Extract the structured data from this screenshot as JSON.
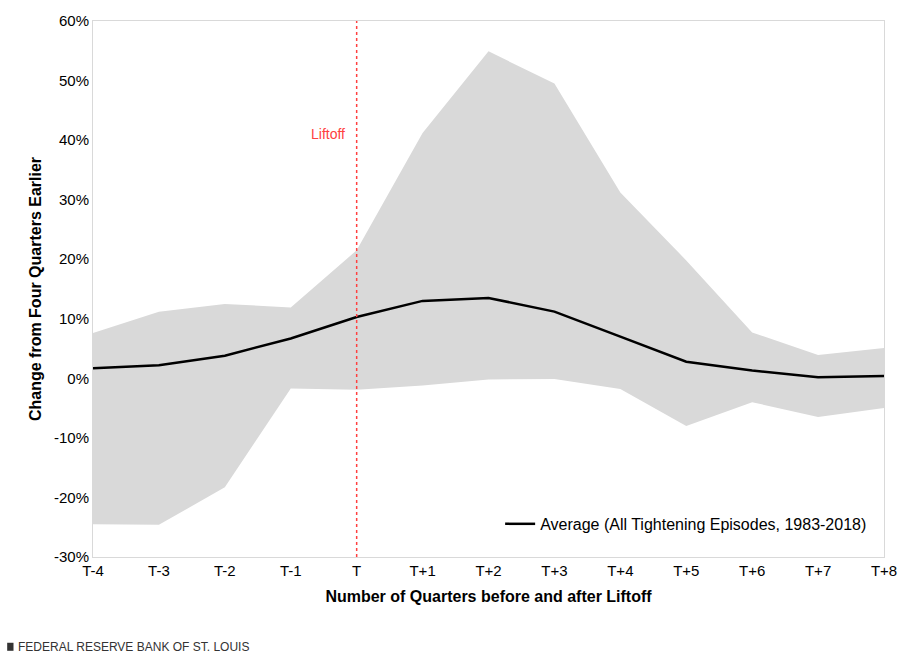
{
  "chart_data": {
    "type": "line",
    "x_label": "Number of Quarters before and after Liftoff",
    "y_label": "Change from Four Quarters Earlier",
    "categories": [
      "T-4",
      "T-3",
      "T-2",
      "T-1",
      "T",
      "T+1",
      "T+2",
      "T+3",
      "T+4",
      "T+5",
      "T+6",
      "T+7",
      "T+8"
    ],
    "series": [
      {
        "name": "Average (All Tightening Episodes, 1983-2018)",
        "color": "#000000",
        "values": [
          1.7,
          2.2,
          3.8,
          6.7,
          10.3,
          13.0,
          13.5,
          11.2,
          7.0,
          2.8,
          1.3,
          0.2,
          0.4
        ]
      }
    ],
    "band": {
      "color": "#d9d9d9",
      "upper": [
        7.6,
        11.2,
        12.5,
        11.9,
        21.5,
        41.2,
        54.9,
        49.5,
        31.2,
        19.8,
        7.7,
        3.9,
        5.1
      ],
      "lower": [
        -24.5,
        -24.6,
        -18.3,
        -1.7,
        -1.9,
        -1.2,
        -0.2,
        -0.1,
        -1.8,
        -8.0,
        -4.0,
        -6.5,
        -5.0
      ]
    },
    "vline": {
      "x": "T",
      "label": "Liftoff",
      "color": "#ff4040",
      "line_style": "dot"
    },
    "ylim": [
      -30,
      60
    ],
    "yticks": [
      {
        "value": -30,
        "label": "-30%"
      },
      {
        "value": -20,
        "label": "-20%"
      },
      {
        "value": -10,
        "label": "-10%"
      },
      {
        "value": 0,
        "label": "0%"
      },
      {
        "value": 10,
        "label": "10%"
      },
      {
        "value": 20,
        "label": "20%"
      },
      {
        "value": 30,
        "label": "30%"
      },
      {
        "value": 40,
        "label": "40%"
      },
      {
        "value": 50,
        "label": "50%"
      },
      {
        "value": 60,
        "label": "60%"
      }
    ],
    "grid": false,
    "legend": "bottom right",
    "source": "FEDERAL RESERVE BANK OF ST. LOUIS"
  }
}
